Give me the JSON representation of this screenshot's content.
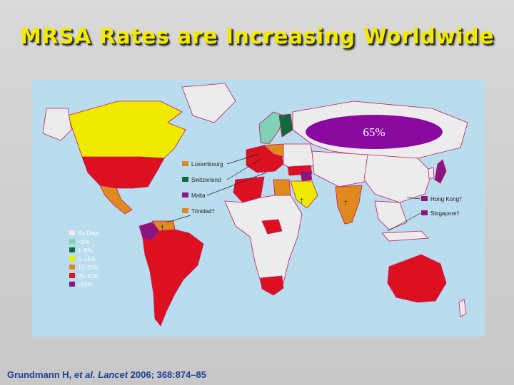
{
  "title": "MRSA Rates are Increasing Worldwide",
  "colors": {
    "no_data": "#ececec",
    "lt1": "#7fd3b5",
    "r1_5": "#0f6b3e",
    "r5_15": "#f0ea00",
    "r10_25": "#e08a1e",
    "r25_50": "#dd1020",
    "gt50": "#8a1580",
    "ocean": "#b9dcef",
    "oval": "#8a0aa0"
  },
  "legend": {
    "items": [
      {
        "label": "No Data",
        "color": "#ececec"
      },
      {
        "label": "<1%",
        "color": "#7fd3b5"
      },
      {
        "label": "1–5%",
        "color": "#0f6b3e"
      },
      {
        "label": "5–15%",
        "color": "#f0ea00"
      },
      {
        "label": "10–25%",
        "color": "#e08a1e"
      },
      {
        "label": "25–50%",
        "color": "#dd1020"
      },
      {
        "label": ">50%",
        "color": "#8a1580"
      }
    ]
  },
  "callouts": {
    "left": [
      {
        "label": "Luxembourg",
        "color": "#e08a1e"
      },
      {
        "label": "Switzerland",
        "color": "#0f6b3e"
      },
      {
        "label": "Malta",
        "color": "#8a1580"
      },
      {
        "label": "Trinidad†",
        "color": "#e08a1e"
      }
    ],
    "right": [
      {
        "label": "Hong Kong†",
        "color": "#8a1580"
      },
      {
        "label": "Singapore†",
        "color": "#8a1580"
      }
    ]
  },
  "oval_label": "65%",
  "dagger": "†",
  "citation": {
    "authors": "Grundmann H,",
    "etal": "et al.",
    "journal": "Lancet",
    "rest": "2006; 368:874–85"
  }
}
